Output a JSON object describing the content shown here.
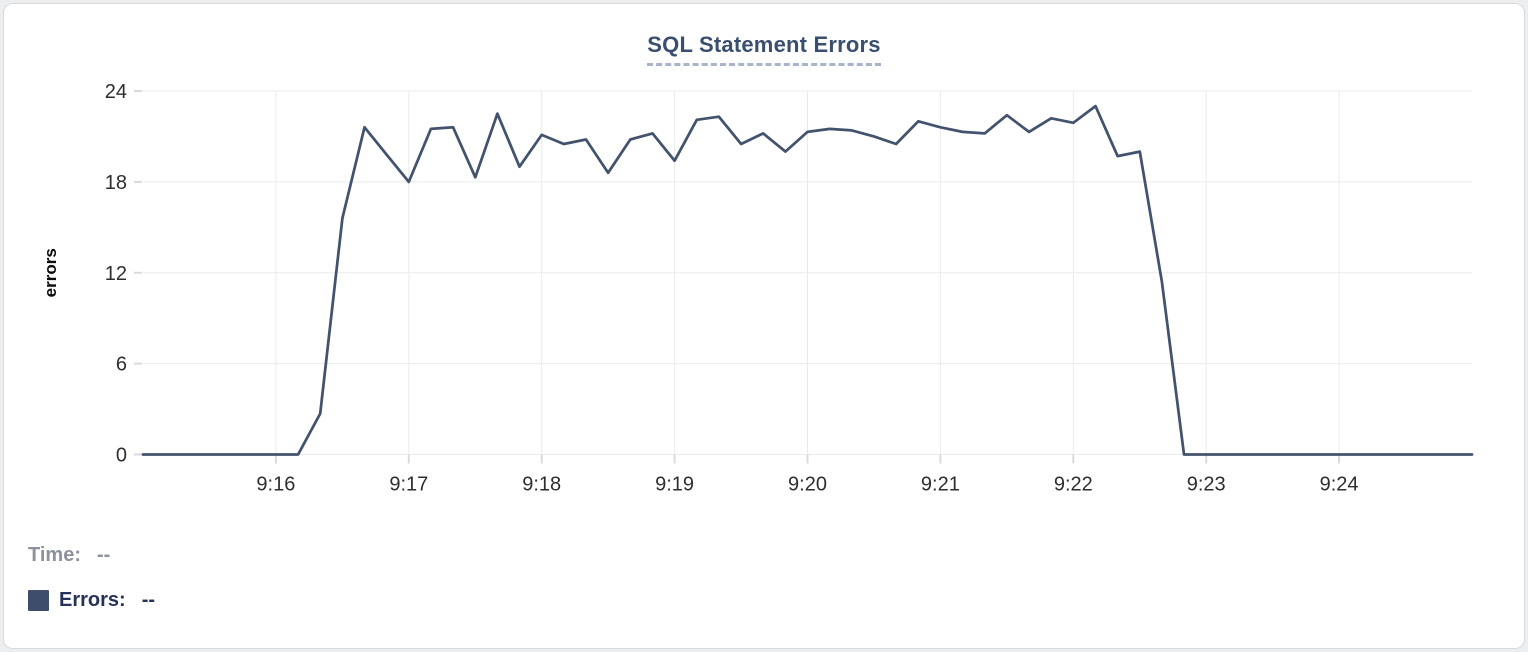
{
  "chart": {
    "title": "SQL Statement Errors"
  },
  "readout": {
    "time_label": "Time:",
    "time_value": "--",
    "errors_label": "Errors:",
    "errors_value": "--"
  },
  "colors": {
    "series": "#43536e",
    "swatch": "#3e4e6a",
    "title": "#3a4e6f",
    "grid": "#eaebec"
  },
  "chart_data": {
    "type": "line",
    "title": "SQL Statement Errors",
    "xlabel": "",
    "ylabel": "errors",
    "ylim": [
      0,
      24
    ],
    "yticks": [
      0,
      6,
      12,
      18,
      24
    ],
    "xticks": [
      "9:16",
      "9:17",
      "9:18",
      "9:19",
      "9:20",
      "9:21",
      "9:22",
      "9:23",
      "9:24"
    ],
    "grid": true,
    "legend_position": "bottom-left",
    "series_name": "Errors",
    "x": [
      "9:15:00",
      "9:15:10",
      "9:15:20",
      "9:15:30",
      "9:15:40",
      "9:15:50",
      "9:16:00",
      "9:16:10",
      "9:16:20",
      "9:16:30",
      "9:16:40",
      "9:16:50",
      "9:17:00",
      "9:17:10",
      "9:17:20",
      "9:17:30",
      "9:17:40",
      "9:17:50",
      "9:18:00",
      "9:18:10",
      "9:18:20",
      "9:18:30",
      "9:18:40",
      "9:18:50",
      "9:19:00",
      "9:19:10",
      "9:19:20",
      "9:19:30",
      "9:19:40",
      "9:19:50",
      "9:20:00",
      "9:20:10",
      "9:20:20",
      "9:20:30",
      "9:20:40",
      "9:20:50",
      "9:21:00",
      "9:21:10",
      "9:21:20",
      "9:21:30",
      "9:21:40",
      "9:21:50",
      "9:22:00",
      "9:22:10",
      "9:22:20",
      "9:22:30",
      "9:22:40",
      "9:22:50",
      "9:23:00",
      "9:23:10",
      "9:23:20",
      "9:23:30",
      "9:23:40",
      "9:23:50",
      "9:24:00",
      "9:24:10",
      "9:24:20",
      "9:24:30",
      "9:24:40",
      "9:24:50",
      "9:25:00"
    ],
    "values": [
      0,
      0,
      0,
      0,
      0,
      0,
      0,
      0,
      2.7,
      15.6,
      21.6,
      19.8,
      18,
      21.5,
      21.6,
      18.3,
      22.5,
      19,
      21.1,
      20.5,
      20.8,
      18.6,
      20.8,
      21.2,
      19.4,
      22.1,
      22.3,
      20.5,
      21.2,
      20,
      21.3,
      21.5,
      21.4,
      21,
      20.5,
      22,
      21.6,
      21.3,
      21.2,
      22.4,
      21.3,
      22.2,
      21.9,
      23,
      19.7,
      20,
      11.4,
      0,
      0,
      0,
      0,
      0,
      0,
      0,
      0,
      0,
      0,
      0,
      0,
      0,
      0
    ]
  }
}
